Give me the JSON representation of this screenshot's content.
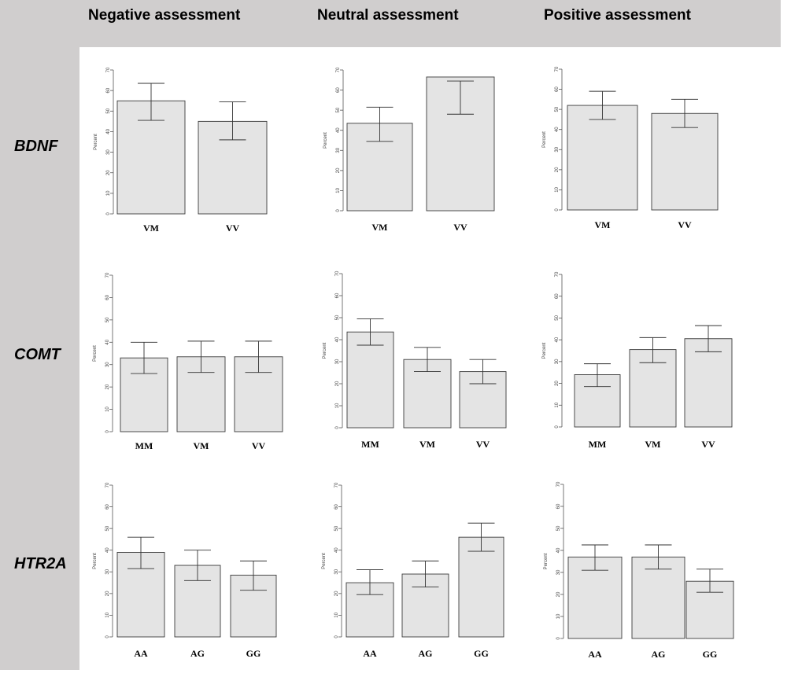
{
  "columns": {
    "negative": "Negative assessment",
    "neutral": "Neutral assessment",
    "positive": "Positive assessment"
  },
  "rows": {
    "bdnf": "BDNF",
    "comt": "COMT",
    "htr2a": "HTR2A"
  },
  "colors": {
    "band": "#d0cece",
    "bar_fill": "#e4e4e4",
    "bar_stroke": "#3a3a3a"
  },
  "chart_data": [
    {
      "type": "bar",
      "row": "BDNF",
      "column": "Negative assessment",
      "ylabel": "Percent",
      "ylim": [
        0,
        70
      ],
      "yticks": [
        0,
        10,
        20,
        30,
        40,
        50,
        60,
        70
      ],
      "categories": [
        "VM",
        "VV"
      ],
      "values": [
        55,
        45
      ],
      "error_low": [
        45.5,
        36
      ],
      "error_high": [
        63.5,
        54.5
      ],
      "grid": false
    },
    {
      "type": "bar",
      "row": "BDNF",
      "column": "Neutral assessment",
      "ylabel": "Percent",
      "ylim": [
        0,
        70
      ],
      "yticks": [
        0,
        10,
        20,
        30,
        40,
        50,
        60,
        70
      ],
      "categories": [
        "VM",
        "VV"
      ],
      "values": [
        43.5,
        66.5
      ],
      "error_low": [
        34.5,
        48
      ],
      "error_high": [
        51.5,
        64.5
      ],
      "grid": false
    },
    {
      "type": "bar",
      "row": "BDNF",
      "column": "Positive assessment",
      "ylabel": "Percent",
      "ylim": [
        0,
        70
      ],
      "yticks": [
        0,
        10,
        20,
        30,
        40,
        50,
        60,
        70
      ],
      "categories": [
        "VM",
        "VV"
      ],
      "values": [
        52,
        48
      ],
      "error_low": [
        45,
        41
      ],
      "error_high": [
        59,
        55
      ],
      "grid": false
    },
    {
      "type": "bar",
      "row": "COMT",
      "column": "Negative assessment",
      "ylabel": "Percent",
      "ylim": [
        0,
        70
      ],
      "yticks": [
        0,
        10,
        20,
        30,
        40,
        50,
        60,
        70
      ],
      "categories": [
        "MM",
        "VM",
        "VV"
      ],
      "values": [
        33,
        33.5,
        33.5
      ],
      "error_low": [
        26,
        26.5,
        26.5
      ],
      "error_high": [
        40,
        40.5,
        40.5
      ],
      "grid": false
    },
    {
      "type": "bar",
      "row": "COMT",
      "column": "Neutral assessment",
      "ylabel": "Percent",
      "ylim": [
        0,
        70
      ],
      "yticks": [
        0,
        10,
        20,
        30,
        40,
        50,
        60,
        70
      ],
      "categories": [
        "MM",
        "VM",
        "VV"
      ],
      "values": [
        43.5,
        31,
        25.5
      ],
      "error_low": [
        37.5,
        25.5,
        20
      ],
      "error_high": [
        49.5,
        36.5,
        31
      ],
      "grid": false
    },
    {
      "type": "bar",
      "row": "COMT",
      "column": "Positive assessment",
      "ylabel": "Percent",
      "ylim": [
        0,
        70
      ],
      "yticks": [
        0,
        10,
        20,
        30,
        40,
        50,
        60,
        70
      ],
      "categories": [
        "MM",
        "VM",
        "VV"
      ],
      "values": [
        24,
        35.5,
        40.5
      ],
      "error_low": [
        18.5,
        29.5,
        34.5
      ],
      "error_high": [
        29,
        41,
        46.5
      ],
      "grid": false
    },
    {
      "type": "bar",
      "row": "HTR2A",
      "column": "Negative assessment",
      "ylabel": "Percent",
      "ylim": [
        0,
        70
      ],
      "yticks": [
        0,
        10,
        20,
        30,
        40,
        50,
        60,
        70
      ],
      "categories": [
        "AA",
        "AG",
        "GG"
      ],
      "values": [
        39,
        33,
        28.5
      ],
      "error_low": [
        31.5,
        26,
        21.5
      ],
      "error_high": [
        46,
        40,
        35
      ],
      "grid": false
    },
    {
      "type": "bar",
      "row": "HTR2A",
      "column": "Neutral assessment",
      "ylabel": "Percent",
      "ylim": [
        0,
        70
      ],
      "yticks": [
        0,
        10,
        20,
        30,
        40,
        50,
        60,
        70
      ],
      "categories": [
        "AA",
        "AG",
        "GG"
      ],
      "values": [
        25,
        29,
        46
      ],
      "error_low": [
        19.5,
        23,
        39.5
      ],
      "error_high": [
        31,
        35,
        52.5
      ],
      "grid": false
    },
    {
      "type": "bar",
      "row": "HTR2A",
      "column": "Positive assessment",
      "ylabel": "Percent",
      "ylim": [
        0,
        70
      ],
      "yticks": [
        0,
        10,
        20,
        30,
        40,
        50,
        60,
        70
      ],
      "categories": [
        "AA",
        "AG",
        "GG"
      ],
      "values": [
        37,
        37,
        26
      ],
      "error_low": [
        31,
        31.5,
        21
      ],
      "error_high": [
        42.5,
        42.5,
        31.5
      ],
      "grid": false
    }
  ]
}
